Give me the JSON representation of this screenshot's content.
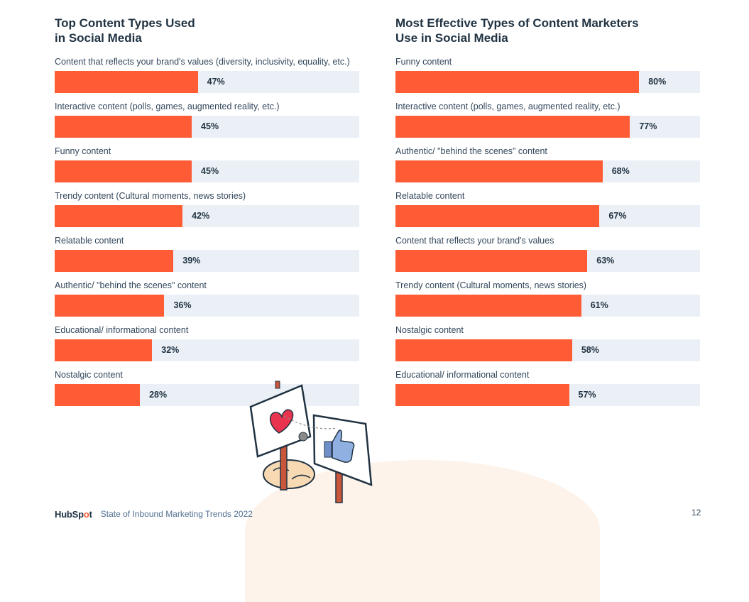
{
  "chart_data": [
    {
      "type": "bar",
      "orientation": "horizontal",
      "title": "Top Content Types Used\nin Social Media",
      "categories": [
        "Content that reflects your brand's values (diversity, inclusivity, equality, etc.)",
        "Interactive content (polls, games, augmented reality, etc.)",
        "Funny content",
        "Trendy content (Cultural moments, news stories)",
        "Relatable content",
        "Authentic/ \"behind the scenes\" content",
        "Educational/ informational content",
        "Nostalgic content"
      ],
      "values": [
        47,
        45,
        45,
        42,
        39,
        36,
        32,
        28
      ],
      "value_labels": [
        "47%",
        "45%",
        "45%",
        "42%",
        "39%",
        "36%",
        "32%",
        "28%"
      ],
      "xlim": [
        0,
        100
      ]
    },
    {
      "type": "bar",
      "orientation": "horizontal",
      "title": "Most Effective Types of Content Marketers\nUse in Social Media",
      "categories": [
        "Funny content",
        "Interactive content (polls, games, augmented reality, etc.)",
        "Authentic/ \"behind the scenes\" content",
        "Relatable content",
        "Content that reflects your brand's values",
        "Trendy content (Cultural moments, news stories)",
        "Nostalgic content",
        "Educational/ informational content"
      ],
      "values": [
        80,
        77,
        68,
        67,
        63,
        61,
        58,
        57
      ],
      "value_labels": [
        "80%",
        "77%",
        "68%",
        "67%",
        "63%",
        "61%",
        "58%",
        "57%"
      ],
      "xlim": [
        0,
        100
      ]
    }
  ],
  "colors": {
    "bar": "#ff5c35",
    "track": "#eaf0f6",
    "text": "#33475b"
  },
  "footer": {
    "brand": "HubSpot",
    "source": "State of Inbound Marketing Trends 2022",
    "page_number": "12"
  },
  "illustration": {
    "icons": [
      "heart-sign-icon",
      "thumbs-up-sign-icon",
      "sleeping-cat-icon"
    ]
  }
}
